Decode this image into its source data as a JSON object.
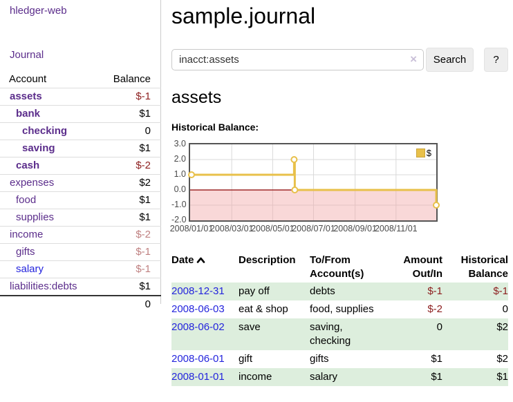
{
  "app": {
    "brand": "hledger-web"
  },
  "colors": {
    "link_purple": "#5b2d8b",
    "link_blue": "#2424dd",
    "negative_strong": "#8c1e1e",
    "negative_soft": "#bf8080",
    "accent_gold": "#e8c04a",
    "row_stripe_green": "#ddeedd"
  },
  "sidebar": {
    "journal_label": "Journal",
    "table": {
      "headers": {
        "account": "Account",
        "balance": "Balance"
      },
      "rows": [
        {
          "name": "assets",
          "depth": 1,
          "balance": "$-1",
          "bold": true,
          "neg": "strong"
        },
        {
          "name": "bank",
          "depth": 2,
          "balance": "$1",
          "bold": true
        },
        {
          "name": "checking",
          "depth": 3,
          "balance": "0",
          "bold": true
        },
        {
          "name": "saving",
          "depth": 3,
          "balance": "$1",
          "bold": true
        },
        {
          "name": "cash",
          "depth": 2,
          "balance": "$-2",
          "bold": true,
          "neg": "strong"
        },
        {
          "name": "expenses",
          "depth": 1,
          "balance": "$2"
        },
        {
          "name": "food",
          "depth": 2,
          "balance": "$1"
        },
        {
          "name": "supplies",
          "depth": 2,
          "balance": "$1"
        },
        {
          "name": "income",
          "depth": 1,
          "balance": "$-2",
          "neg": "soft"
        },
        {
          "name": "gifts",
          "depth": 2,
          "balance": "$-1",
          "neg": "soft"
        },
        {
          "name": "salary",
          "depth": 2,
          "balance": "$-1",
          "neg": "soft",
          "link_color": "blue"
        },
        {
          "name": "liabilities:debts",
          "depth": 1,
          "balance": "$1"
        }
      ],
      "total": "0"
    }
  },
  "header": {
    "title": "sample.journal"
  },
  "search": {
    "value": "inacct:assets",
    "clear_icon": "×",
    "button_label": "Search",
    "help_label": "?"
  },
  "main": {
    "account_title": "assets",
    "chart_label": "Historical Balance:"
  },
  "chart_data": {
    "type": "line",
    "step": true,
    "title": "Historical Balance",
    "series": [
      {
        "name": "$",
        "color": "#e8c04a",
        "points": [
          [
            "2008-01-01",
            1
          ],
          [
            "2008-06-02",
            2
          ],
          [
            "2008-06-03",
            0
          ],
          [
            "2008-12-31",
            -1
          ]
        ]
      }
    ],
    "x_range": [
      "2008-01-01",
      "2008-12-31"
    ],
    "x_ticks": [
      "2008/01/01",
      "2008/03/01",
      "2008/05/01",
      "2008/07/01",
      "2008/09/01",
      "2008/11/01"
    ],
    "y_ticks": [
      3.0,
      2.0,
      1.0,
      0.0,
      -1.0,
      -2.0
    ],
    "ylim": [
      -2,
      3
    ],
    "grid": true,
    "legend": {
      "label": "$",
      "position": "top-right"
    },
    "zero_line_color": "#8b0000",
    "negative_region_color": "#f9dada"
  },
  "register": {
    "headers": [
      {
        "line1": "Date",
        "line2": "",
        "align": "left",
        "sorted": "asc"
      },
      {
        "line1": "Description",
        "line2": "",
        "align": "left"
      },
      {
        "line1": "To/From",
        "line2": "Account(s)",
        "align": "left"
      },
      {
        "line1": "Amount",
        "line2": "Out/In",
        "align": "right"
      },
      {
        "line1": "Historical",
        "line2": "Balance",
        "align": "right"
      }
    ],
    "rows": [
      {
        "date": "2008-12-31",
        "description": "pay off",
        "accounts": "debts",
        "amount": "$-1",
        "amount_negative": true,
        "balance": "$-1",
        "balance_negative": true,
        "shaded": true
      },
      {
        "date": "2008-06-03",
        "description": "eat & shop",
        "accounts": "food, supplies",
        "amount": "$-2",
        "amount_negative": true,
        "balance": "0",
        "balance_negative": false,
        "shaded": false
      },
      {
        "date": "2008-06-02",
        "description": "save",
        "accounts": "saving, checking",
        "amount": "0",
        "amount_negative": false,
        "balance": "$2",
        "balance_negative": false,
        "shaded": true
      },
      {
        "date": "2008-06-01",
        "description": "gift",
        "accounts": "gifts",
        "amount": "$1",
        "amount_negative": false,
        "balance": "$2",
        "balance_negative": false,
        "shaded": false
      },
      {
        "date": "2008-01-01",
        "description": "income",
        "accounts": "salary",
        "amount": "$1",
        "amount_negative": false,
        "balance": "$1",
        "balance_negative": false,
        "shaded": true
      }
    ]
  }
}
